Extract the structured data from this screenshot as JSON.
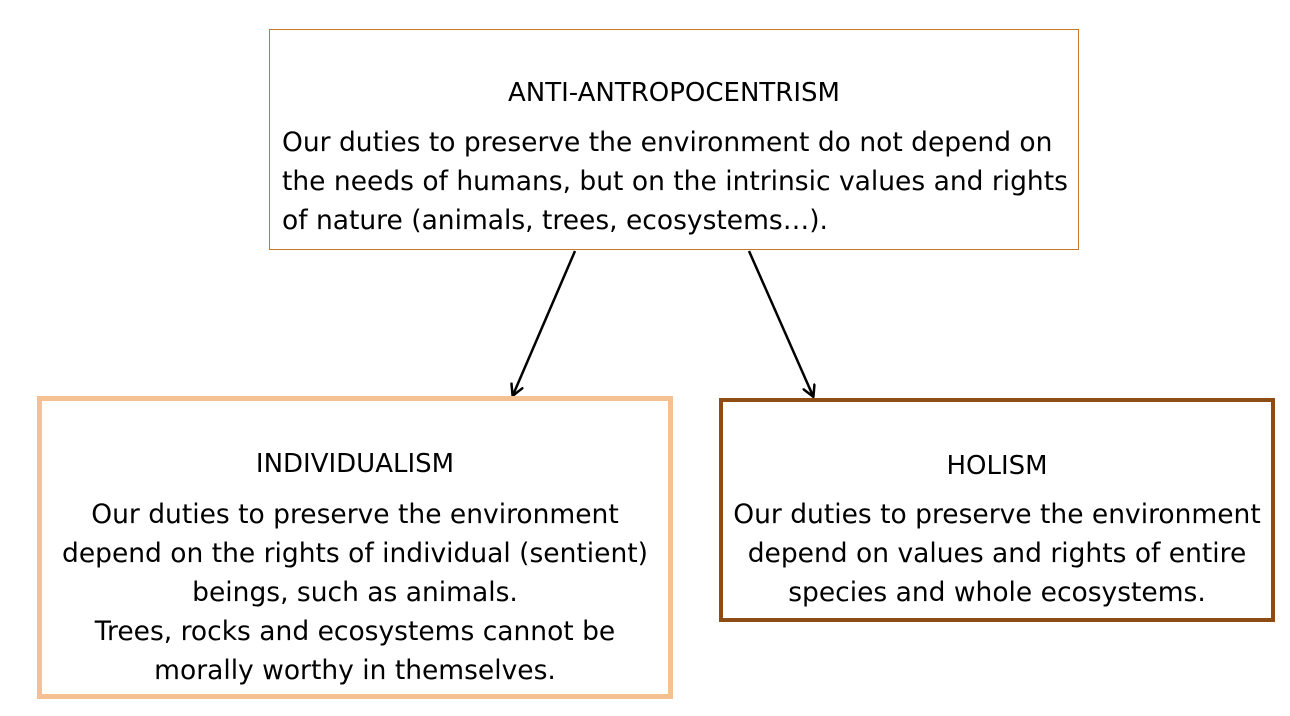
{
  "top_box": {
    "heading": "ANTI-ANTROPOCENTRISM",
    "lines": [
      "Our duties to preserve the environment do not depend on",
      "the needs of humans, but on the intrinsic values and rights",
      "of nature (animals, trees, ecosystems…)."
    ]
  },
  "left_box": {
    "heading": "INDIVIDUALISM",
    "lines": [
      "Our duties to preserve the environment",
      "depend on the rights of individual (sentient)",
      "beings, such as animals.",
      "Trees, rocks and ecosystems cannot be",
      "morally worthy in themselves."
    ]
  },
  "right_box": {
    "heading": "HOLISM",
    "lines": [
      "Our duties to preserve the environment",
      "depend on values and rights of entire",
      "species and whole ecosystems."
    ]
  },
  "colors": {
    "top_border": "#c8782a",
    "left_border": "#f6c192",
    "right_border": "#8c4c13",
    "arrow": "#000000"
  }
}
